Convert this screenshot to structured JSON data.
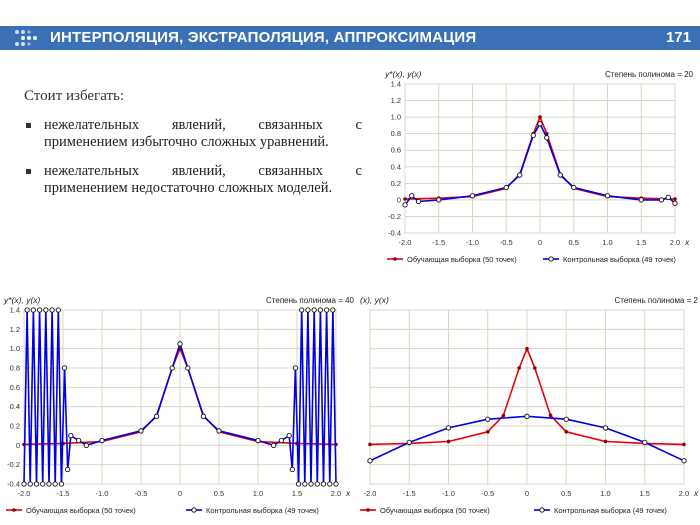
{
  "header": {
    "title": "ИНТЕРПОЛЯЦИЯ, ЭКСТРАПОЛЯЦИЯ, АППРОКСИМАЦИЯ",
    "page_number": "171",
    "accent": "#3b6fb6"
  },
  "content": {
    "lead": "Стоит избегать:",
    "bullets": [
      "нежелательных явлений, связанных с применением избыточно сложных уравнений.",
      "нежелательных явлений, связанных с применением недостаточно сложных моделей."
    ]
  },
  "chart_data": [
    {
      "type": "line",
      "ylabel": "y*(x), y(x)",
      "xlabel": "x",
      "annotation": "Степень полинома = 20",
      "xlim": [
        -2.0,
        2.0
      ],
      "ylim": [
        -0.4,
        1.4
      ],
      "xticks": [
        "-2.0",
        "-1.5",
        "-1.0",
        "-0.5",
        "0",
        "0.5",
        "1.0",
        "1.5",
        "2.0"
      ],
      "yticks": [
        "-0.4",
        "-0.2",
        "0",
        "0.2",
        "0.4",
        "0.6",
        "0.8",
        "1.0",
        "1.2",
        "1.4"
      ],
      "legend": [
        "Обучающая выборка (50 точек)",
        "Контрольная выборка (49 точек)"
      ],
      "legend_placement": "bottom",
      "grid": true,
      "series_colors": [
        "#e8000b",
        "#0000e0"
      ],
      "series": [
        {
          "x": [
            -2.0,
            -1.5,
            -1.0,
            -0.5,
            -0.3,
            -0.1,
            0,
            0.1,
            0.3,
            0.5,
            1.0,
            1.5,
            2.0
          ],
          "y": [
            0.01,
            0.02,
            0.04,
            0.14,
            0.31,
            0.8,
            1.0,
            0.8,
            0.31,
            0.14,
            0.04,
            0.02,
            0.01
          ]
        },
        {
          "x": [
            -2.0,
            -1.9,
            -1.8,
            -1.5,
            -1.0,
            -0.5,
            -0.3,
            -0.1,
            0,
            0.1,
            0.3,
            0.5,
            1.0,
            1.5,
            1.8,
            1.9,
            2.0
          ],
          "y": [
            -0.06,
            0.05,
            -0.02,
            0.0,
            0.05,
            0.15,
            0.3,
            0.78,
            0.92,
            0.75,
            0.3,
            0.15,
            0.05,
            0.0,
            0.0,
            0.03,
            -0.04
          ]
        }
      ]
    },
    {
      "type": "line",
      "ylabel": "y*(x), y(x)",
      "xlabel": "x",
      "annotation": "Степень полинома = 40",
      "xlim": [
        -2.0,
        2.0
      ],
      "ylim": [
        -0.4,
        1.4
      ],
      "xticks": [
        "-2.0",
        "-1.5",
        "-1.0",
        "-0.5",
        "0",
        "0.5",
        "1.0",
        "1.5",
        "2.0"
      ],
      "yticks": [
        "-0.4",
        "-0.2",
        "0",
        "0.2",
        "0.4",
        "0.6",
        "0.8",
        "1.0",
        "1.2",
        "1.4"
      ],
      "legend": [
        "Обучающая выборка (50 точек)",
        "Контрольная выборка (49 точек)"
      ],
      "legend_placement": "bottom",
      "grid": true,
      "series_colors": [
        "#e8000b",
        "#0000e0"
      ],
      "series": [
        {
          "x": [
            -2.0,
            -1.5,
            -1.0,
            -0.5,
            -0.3,
            -0.1,
            0,
            0.1,
            0.3,
            0.5,
            1.0,
            1.5,
            2.0
          ],
          "y": [
            0.01,
            0.02,
            0.04,
            0.14,
            0.31,
            0.8,
            1.0,
            0.8,
            0.31,
            0.14,
            0.04,
            0.02,
            0.01
          ]
        },
        {
          "x": [
            -2.0,
            -1.96,
            -1.92,
            -1.88,
            -1.84,
            -1.8,
            -1.76,
            -1.72,
            -1.68,
            -1.64,
            -1.6,
            -1.56,
            -1.52,
            -1.48,
            -1.44,
            -1.4,
            -1.3,
            -1.2,
            -1.0,
            -0.5,
            -0.3,
            -0.1,
            0,
            0.1,
            0.3,
            0.5,
            1.0,
            1.2,
            1.3,
            1.4,
            1.44,
            1.48,
            1.52,
            1.56,
            1.6,
            1.64,
            1.68,
            1.72,
            1.76,
            1.8,
            1.84,
            1.88,
            1.92,
            1.96,
            2.0
          ],
          "y": [
            -0.4,
            1.4,
            -0.4,
            1.4,
            -0.4,
            1.4,
            -0.4,
            1.4,
            -0.4,
            1.4,
            -0.4,
            1.4,
            -0.4,
            0.8,
            -0.25,
            0.1,
            0.05,
            0.0,
            0.05,
            0.15,
            0.3,
            0.8,
            1.05,
            0.8,
            0.3,
            0.15,
            0.05,
            0.0,
            0.05,
            0.1,
            -0.25,
            0.8,
            -0.4,
            1.4,
            -0.4,
            1.4,
            -0.4,
            1.4,
            -0.4,
            1.4,
            -0.4,
            1.4,
            -0.4,
            1.4,
            -0.4
          ]
        }
      ]
    },
    {
      "type": "line",
      "ylabel": "(x), y(x)",
      "xlabel": "x",
      "annotation": "Степень полинома = 2",
      "xlim": [
        -2.0,
        2.0
      ],
      "ylim": [
        -0.4,
        1.4
      ],
      "xticks": [
        "-2.0",
        "-1.5",
        "-1.0",
        "-0.5",
        "0",
        "0.5",
        "1.0",
        "1.5",
        "2.0"
      ],
      "yticks": [
        "",
        "",
        "",
        "",
        "",
        "",
        "",
        "",
        "",
        ""
      ],
      "legend": [
        "Обучающая выборка (50 точек)",
        "Контрольная выборка (49 точек)"
      ],
      "legend_placement": "bottom",
      "grid": true,
      "series_colors": [
        "#e8000b",
        "#0000e0"
      ],
      "series": [
        {
          "x": [
            -2.0,
            -1.5,
            -1.0,
            -0.5,
            -0.3,
            -0.1,
            0,
            0.1,
            0.3,
            0.5,
            1.0,
            1.5,
            2.0
          ],
          "y": [
            0.01,
            0.02,
            0.04,
            0.14,
            0.31,
            0.8,
            1.0,
            0.8,
            0.31,
            0.14,
            0.04,
            0.02,
            0.01
          ]
        },
        {
          "x": [
            -2.0,
            -1.5,
            -1.0,
            -0.5,
            0,
            0.5,
            1.0,
            1.5,
            2.0
          ],
          "y": [
            -0.16,
            0.03,
            0.18,
            0.27,
            0.3,
            0.27,
            0.18,
            0.03,
            -0.16
          ]
        }
      ]
    }
  ]
}
